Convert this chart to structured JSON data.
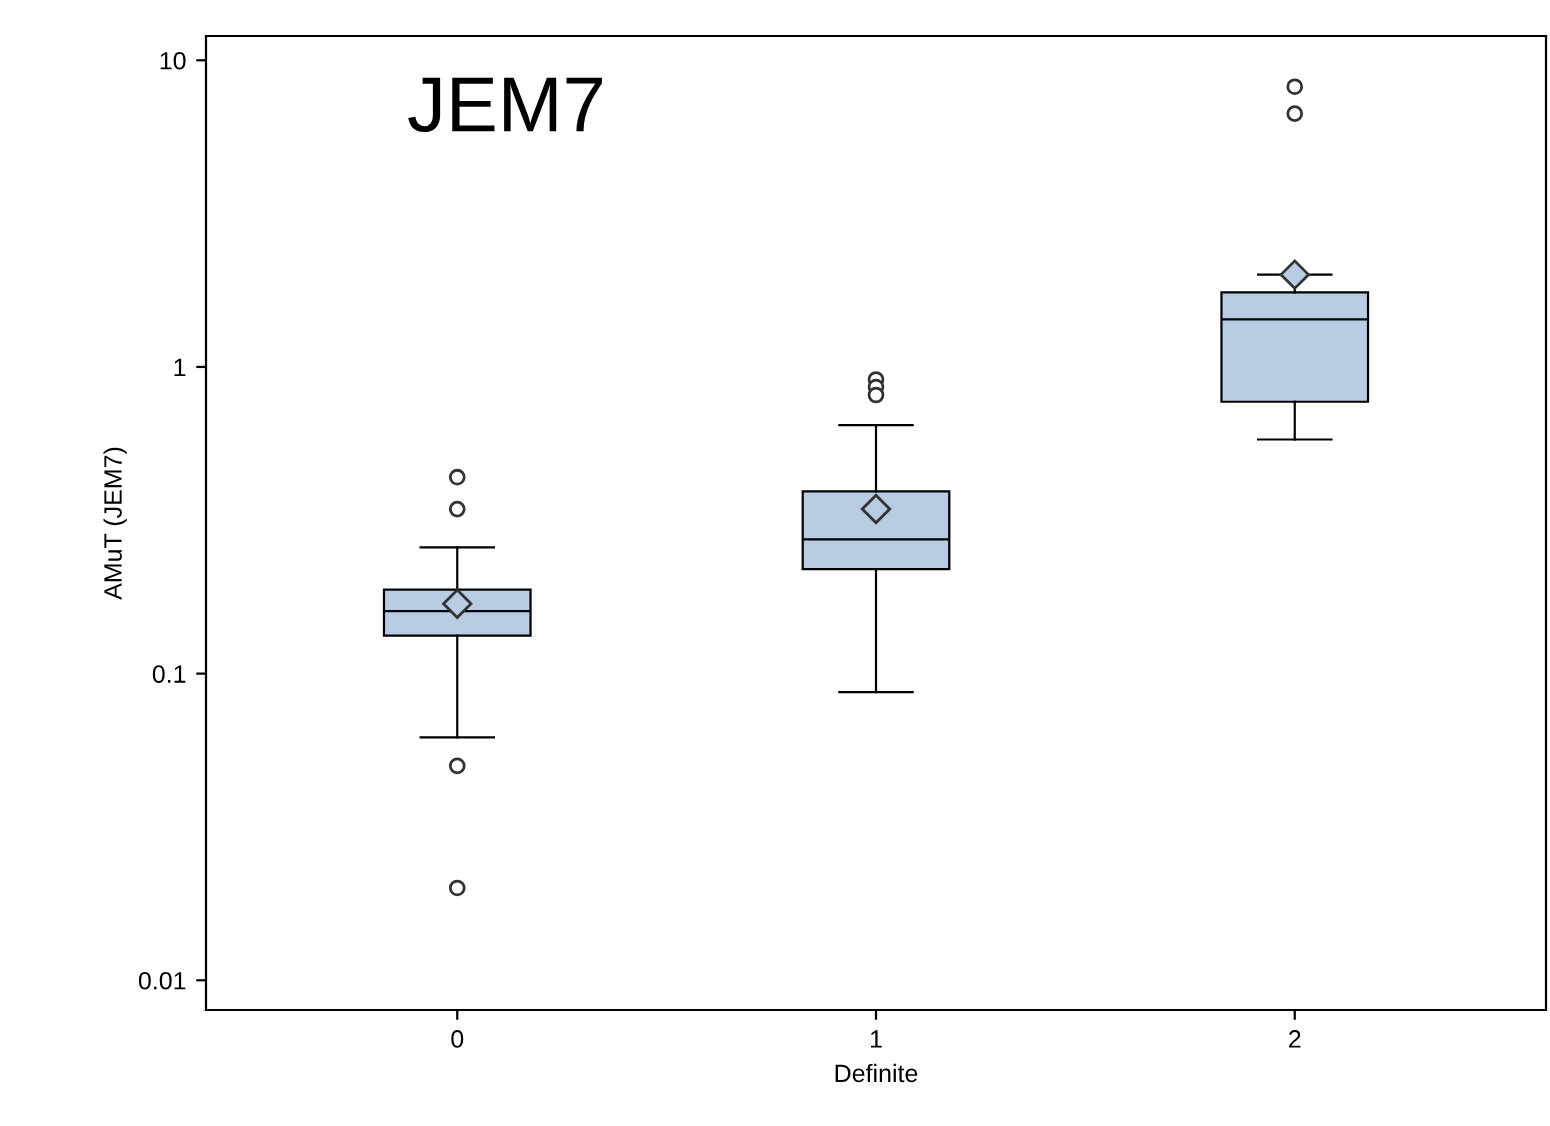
{
  "chart_data": {
    "type": "box",
    "title": "JEM7",
    "xlabel": "Definite",
    "ylabel": "AMuT (JEM7)",
    "categories": [
      "0",
      "1",
      "2"
    ],
    "boxes": [
      {
        "low": 0.062,
        "q1": 0.133,
        "median": 0.16,
        "q3": 0.188,
        "high": 0.258,
        "mean": 0.169,
        "outliers": [
          0.437,
          0.344,
          0.05,
          0.02
        ]
      },
      {
        "low": 0.087,
        "q1": 0.219,
        "median": 0.274,
        "q3": 0.393,
        "high": 0.646,
        "mean": 0.344,
        "outliers": [
          0.91,
          0.86,
          0.81
        ]
      },
      {
        "low": 0.58,
        "q1": 0.77,
        "median": 1.43,
        "q3": 1.75,
        "high": 2.0,
        "mean": 2.0,
        "outliers": [
          8.2,
          6.7
        ]
      }
    ],
    "color": "#b8cce4",
    "log": true,
    "ylim": [
      0.008,
      12
    ],
    "yticks": [
      {
        "value": 0.01,
        "label": "0.01"
      },
      {
        "value": 0.1,
        "label": "0.1"
      },
      {
        "value": 1,
        "label": "1"
      },
      {
        "value": 10,
        "label": "10"
      }
    ],
    "grid": false,
    "legend": false
  }
}
